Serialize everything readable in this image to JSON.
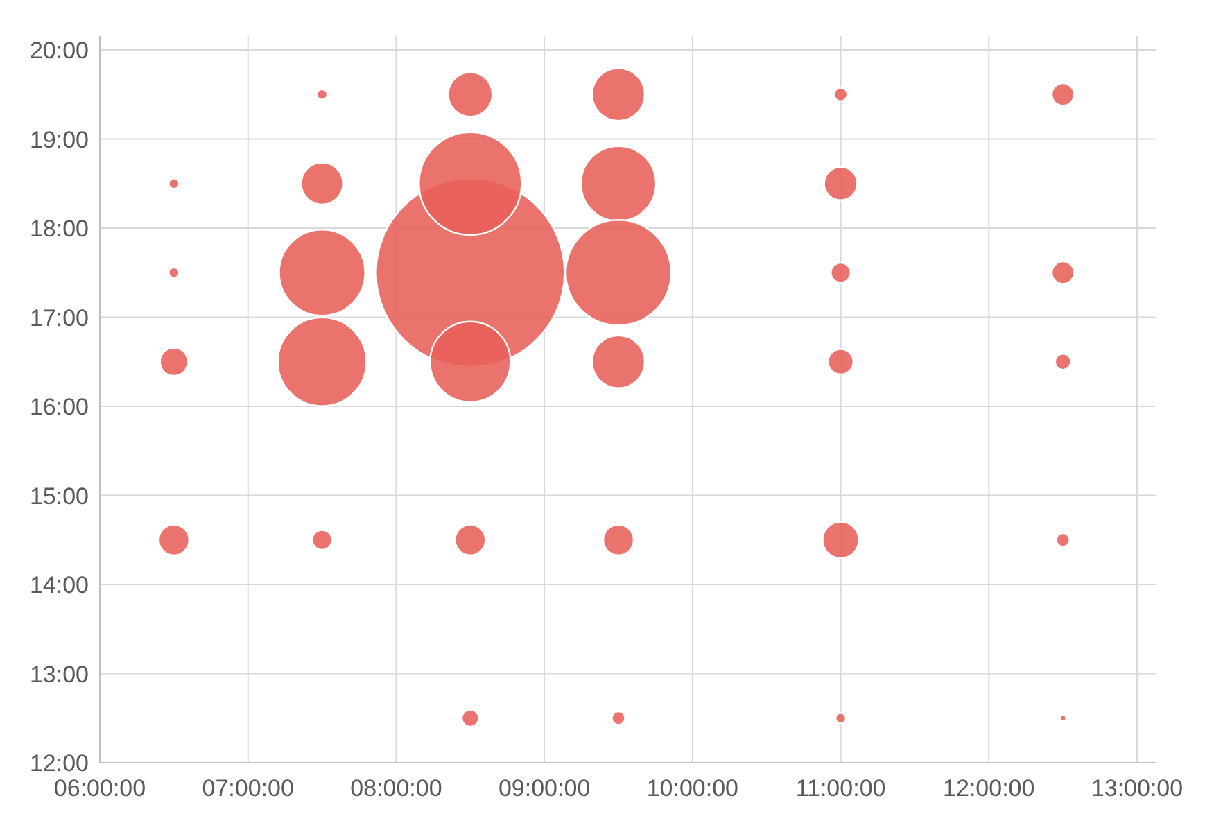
{
  "chart_data": {
    "type": "bubble",
    "xlim": [
      6,
      13
    ],
    "ylim": [
      12,
      20
    ],
    "xticks": [
      {
        "value": 6,
        "label": "06:00:00"
      },
      {
        "value": 7,
        "label": "07:00:00"
      },
      {
        "value": 8,
        "label": "08:00:00"
      },
      {
        "value": 9,
        "label": "09:00:00"
      },
      {
        "value": 10,
        "label": "10:00:00"
      },
      {
        "value": 11,
        "label": "11:00:00"
      },
      {
        "value": 12,
        "label": "12:00:00"
      },
      {
        "value": 13,
        "label": "13:00:00"
      }
    ],
    "yticks": [
      {
        "value": 12,
        "label": "12:00"
      },
      {
        "value": 13,
        "label": "13:00"
      },
      {
        "value": 14,
        "label": "14:00"
      },
      {
        "value": 15,
        "label": "15:00"
      },
      {
        "value": 16,
        "label": "16:00"
      },
      {
        "value": 17,
        "label": "17:00"
      },
      {
        "value": 18,
        "label": "18:00"
      },
      {
        "value": 19,
        "label": "19:00"
      },
      {
        "value": 20,
        "label": "20:00"
      }
    ],
    "grid": true,
    "series": [
      {
        "color": "#e8605a",
        "x": [
          6.5,
          6.5,
          6.5,
          6.5,
          7.5,
          7.5,
          7.5,
          7.5,
          7.5,
          8.5,
          8.5,
          8.5,
          8.5,
          8.5,
          8.5,
          9.5,
          9.5,
          9.5,
          9.5,
          9.5,
          9.5,
          11,
          11,
          11,
          11,
          11,
          11,
          12.5,
          12.5,
          12.5,
          12.5,
          12.5
        ],
        "values": [
          18.5,
          17.5,
          16.5,
          14.5,
          19.5,
          18.5,
          17.5,
          16.5,
          14.5,
          19.5,
          17.5,
          18.5,
          16.5,
          14.5,
          12.5,
          19.5,
          18.5,
          17.5,
          16.5,
          14.5,
          12.5,
          19.5,
          18.5,
          17.5,
          16.5,
          14.5,
          12.5,
          19.5,
          17.5,
          16.5,
          14.5,
          12.5
        ],
        "sizes": [
          0.003,
          0.003,
          0.022,
          0.026,
          0.003,
          0.049,
          0.208,
          0.221,
          0.011,
          0.055,
          1,
          0.296,
          0.182,
          0.026,
          0.008,
          0.078,
          0.158,
          0.312,
          0.078,
          0.026,
          0.005,
          0.005,
          0.031,
          0.011,
          0.018,
          0.037,
          0.003,
          0.014,
          0.014,
          0.007,
          0.005,
          0.0006
        ]
      }
    ]
  }
}
